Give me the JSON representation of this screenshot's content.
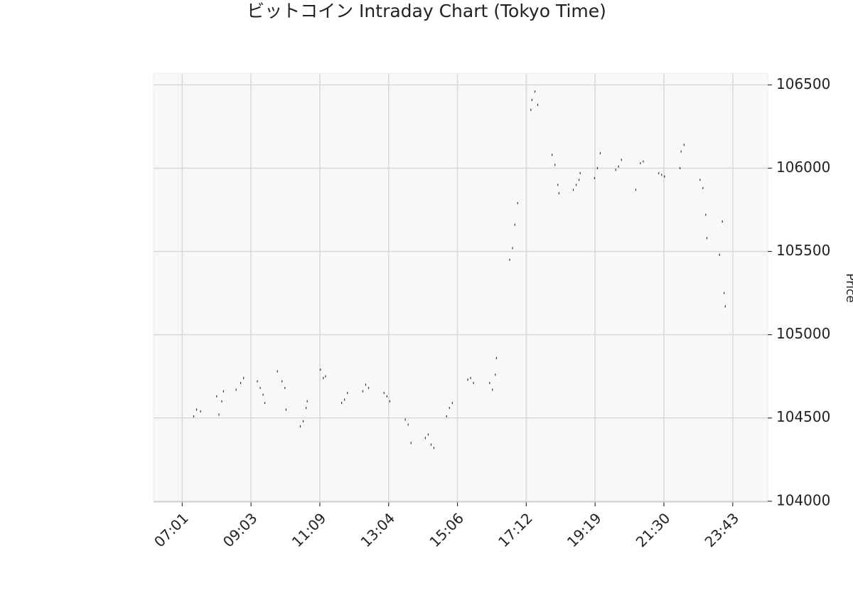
{
  "chart_data": {
    "type": "scatter",
    "title": "ビットコイン Intraday Chart (Tokyo Time)",
    "y_label": "Price",
    "grid": true,
    "color": "#333333",
    "background": "#f8f8f8",
    "x": [
      20,
      25,
      32,
      60,
      64,
      69,
      72,
      94,
      102,
      107,
      131,
      136,
      141,
      144,
      166,
      174,
      179,
      181,
      206,
      211,
      216,
      218,
      241,
      246,
      250,
      278,
      283,
      288,
      315,
      320,
      325,
      352,
      357,
      362,
      389,
      394,
      399,
      424,
      429,
      434,
      439,
      461,
      466,
      471,
      498,
      503,
      508,
      536,
      541,
      546,
      548,
      571,
      576,
      580,
      585,
      608,
      610,
      615,
      620,
      645,
      650,
      655,
      657,
      682,
      687,
      692,
      694,
      719,
      724,
      729,
      756,
      761,
      766,
      791,
      799,
      804,
      831,
      836,
      841,
      868,
      870,
      875,
      903,
      908,
      913,
      915,
      937,
      942,
      945,
      947
    ],
    "values": [
      104510,
      104550,
      104540,
      104630,
      104520,
      104600,
      104660,
      104670,
      104710,
      104740,
      104720,
      104680,
      104640,
      104590,
      104780,
      104720,
      104680,
      104550,
      104450,
      104480,
      104560,
      104600,
      104790,
      104740,
      104750,
      104590,
      104610,
      104650,
      104660,
      104700,
      104680,
      104650,
      104630,
      104600,
      104490,
      104460,
      104350,
      104380,
      104400,
      104340,
      104320,
      104510,
      104560,
      104590,
      104730,
      104740,
      104710,
      104710,
      104670,
      104760,
      104860,
      105450,
      105520,
      105660,
      105790,
      106350,
      106410,
      106460,
      106380,
      106080,
      106020,
      105900,
      105850,
      105870,
      105900,
      105930,
      105970,
      105940,
      106000,
      106090,
      105990,
      106010,
      106050,
      105870,
      106030,
      106040,
      105970,
      105960,
      105950,
      106000,
      106100,
      106140,
      105930,
      105880,
      105720,
      105580,
      105480,
      105680,
      105250,
      105170
    ],
    "xlim": [
      -50,
      1021
    ],
    "xticks": [
      {
        "value": 0,
        "label": "07:01"
      },
      {
        "value": 120,
        "label": "09:03"
      },
      {
        "value": 240,
        "label": "11:09"
      },
      {
        "value": 360,
        "label": "13:04"
      },
      {
        "value": 480,
        "label": "15:06"
      },
      {
        "value": 600,
        "label": "17:12"
      },
      {
        "value": 720,
        "label": "19:19"
      },
      {
        "value": 840,
        "label": "21:30"
      },
      {
        "value": 960,
        "label": "23:43"
      }
    ],
    "ylim": [
      103995,
      106570
    ],
    "yticks": [
      104000,
      104500,
      105000,
      105500,
      106000,
      106500
    ]
  }
}
